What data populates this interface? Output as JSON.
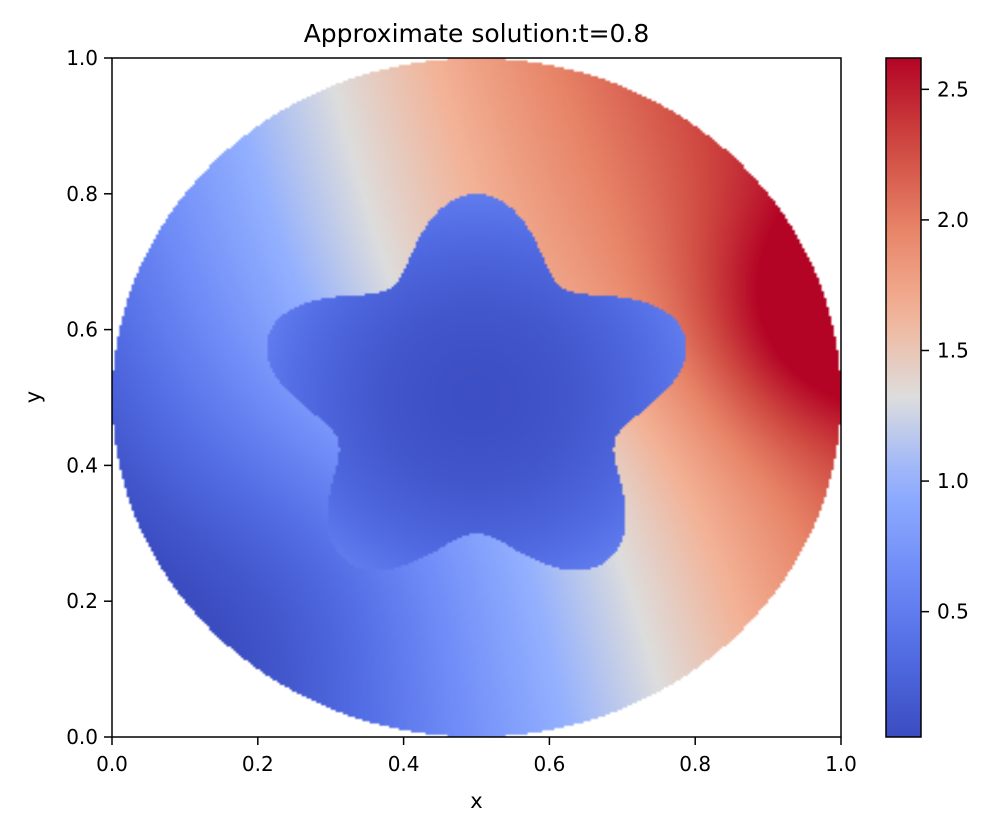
{
  "chart_data": {
    "type": "heatmap",
    "title": "Approximate solution:t=0.8",
    "xlabel": "x",
    "ylabel": "y",
    "xlim": [
      0.0,
      1.0
    ],
    "ylim": [
      0.0,
      1.0
    ],
    "x_ticks": [
      0.0,
      0.2,
      0.4,
      0.6,
      0.8,
      1.0
    ],
    "y_ticks": [
      0.0,
      0.2,
      0.4,
      0.6,
      0.8,
      1.0
    ],
    "x_tick_labels": [
      "0.0",
      "0.2",
      "0.4",
      "0.6",
      "0.8",
      "1.0"
    ],
    "y_tick_labels": [
      "0.0",
      "0.2",
      "0.4",
      "0.6",
      "0.8",
      "1.0"
    ],
    "grid": false,
    "colormap": "coolwarm",
    "domain": {
      "shape": "disk",
      "center": [
        0.5,
        0.5
      ],
      "radius": 0.5
    },
    "inner_region": {
      "shape": "five-pointed star",
      "center": [
        0.5,
        0.5
      ],
      "approx_outer_radius": 0.3,
      "approx_inner_radius": 0.2,
      "value_min": 0.05,
      "value_max": 0.5
    },
    "field_description_values": {
      "max_location": [
        0.98,
        0.62
      ],
      "max_value": 2.62,
      "min_location": [
        0.49,
        0.5
      ],
      "min_value": 0.02
    },
    "colorbar": {
      "range": [
        0.02,
        2.62
      ],
      "ticks": [
        0.5,
        1.0,
        1.5,
        2.0,
        2.5
      ],
      "tick_labels": [
        "0.5",
        "1.0",
        "1.5",
        "2.0",
        "2.5"
      ],
      "colors": {
        "low": "#3b4cc0",
        "mid": "#dddddd",
        "high": "#b40426"
      }
    }
  }
}
